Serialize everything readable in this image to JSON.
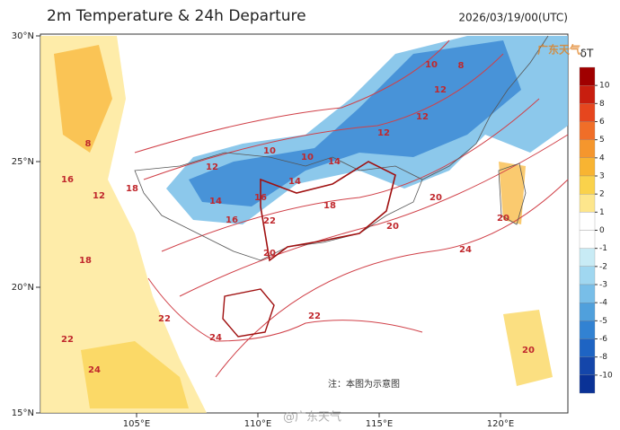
{
  "header": {
    "title": "2m Temperature & 24h Departure",
    "time": "2026/03/19/00(UTC)"
  },
  "map": {
    "lat_ticks": [
      {
        "value": 30,
        "label": "30°N"
      },
      {
        "value": 25,
        "label": "25°N"
      },
      {
        "value": 20,
        "label": "20°N"
      },
      {
        "value": 15,
        "label": "15°N"
      }
    ],
    "lon_ticks": [
      {
        "value": 105,
        "label": "105°E"
      },
      {
        "value": 110,
        "label": "110°E"
      },
      {
        "value": 115,
        "label": "115°E"
      },
      {
        "value": 120,
        "label": "120°E"
      }
    ],
    "contour_labels": [
      "10",
      "8",
      "12",
      "12",
      "10",
      "10",
      "12",
      "14",
      "16",
      "14",
      "18",
      "16",
      "14",
      "12",
      "18",
      "20",
      "20",
      "22",
      "24",
      "24",
      "22",
      "20",
      "18",
      "16",
      "12",
      "8",
      "22",
      "24",
      "20",
      "22",
      "20"
    ],
    "note": "注：本图为示意图"
  },
  "colorbar": {
    "label": "δT",
    "levels": [
      10,
      8,
      6,
      5,
      4,
      3,
      2,
      1,
      0,
      -1,
      -2,
      -3,
      -4,
      -5,
      -6,
      -8,
      -10
    ],
    "colors": [
      "#a00000",
      "#c81e0f",
      "#e6461e",
      "#f06e28",
      "#f5962d",
      "#f8b432",
      "#fad24b",
      "#fde68c",
      "#ffffff",
      "#ffffff",
      "#c8ebf5",
      "#a0d7f0",
      "#78bee8",
      "#50a0dc",
      "#3282d2",
      "#1e64c3",
      "#1446aa",
      "#0a3296"
    ]
  },
  "watermark": {
    "logo": "广东天气",
    "handle": "@广东天气"
  }
}
